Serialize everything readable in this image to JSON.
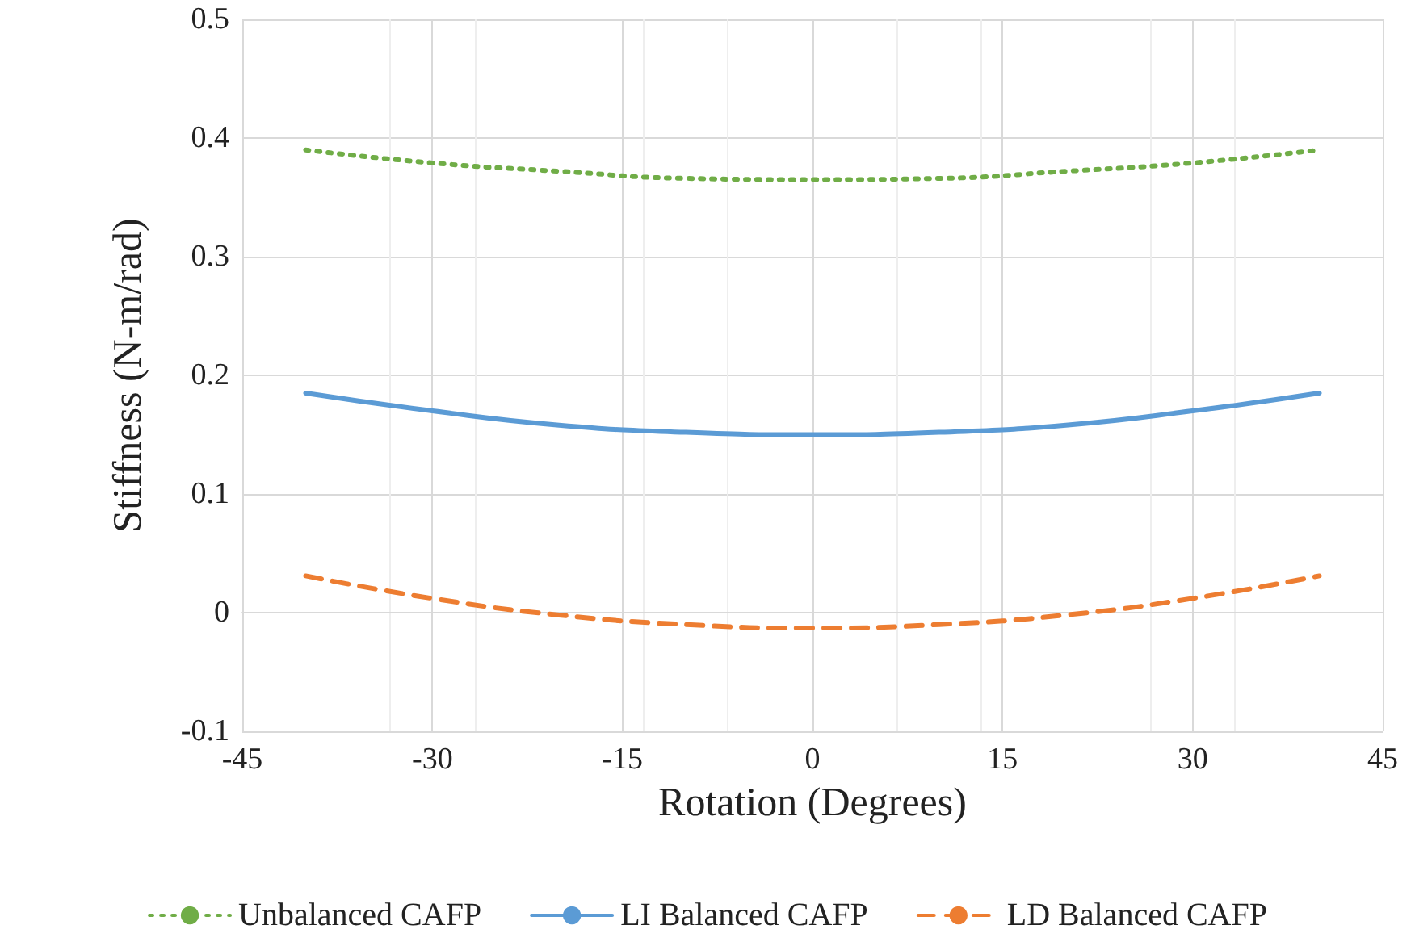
{
  "chart_data": {
    "type": "line",
    "xlabel": "Rotation (Degrees)",
    "ylabel": "Stiffness (N-m/rad)",
    "x": [
      -40,
      -30,
      -20,
      -10,
      0,
      10,
      20,
      30,
      40
    ],
    "series": [
      {
        "name": "Unbalanced CAFP",
        "color": "#70ad47",
        "line_style": "dotted",
        "values": [
          0.39,
          0.379,
          0.372,
          0.366,
          0.365,
          0.366,
          0.372,
          0.379,
          0.39
        ]
      },
      {
        "name": "LI Balanced CAFP",
        "color": "#5b9bd5",
        "line_style": "solid",
        "values": [
          0.185,
          0.17,
          0.158,
          0.152,
          0.15,
          0.152,
          0.158,
          0.17,
          0.185
        ]
      },
      {
        "name": "LD Balanced CAFP",
        "color": "#ed7d31",
        "line_style": "dashed",
        "values": [
          0.031,
          0.012,
          -0.002,
          -0.01,
          -0.013,
          -0.01,
          -0.002,
          0.012,
          0.031
        ]
      }
    ],
    "xlim": [
      -45,
      45
    ],
    "xticks": [
      -45,
      -30,
      -15,
      0,
      15,
      30,
      45
    ],
    "ylim": [
      -0.1,
      0.5
    ],
    "yticks": [
      -0.1,
      0,
      0.1,
      0.2,
      0.3,
      0.4,
      0.5
    ],
    "grid": true,
    "legend": "bottom",
    "marker": "none"
  }
}
